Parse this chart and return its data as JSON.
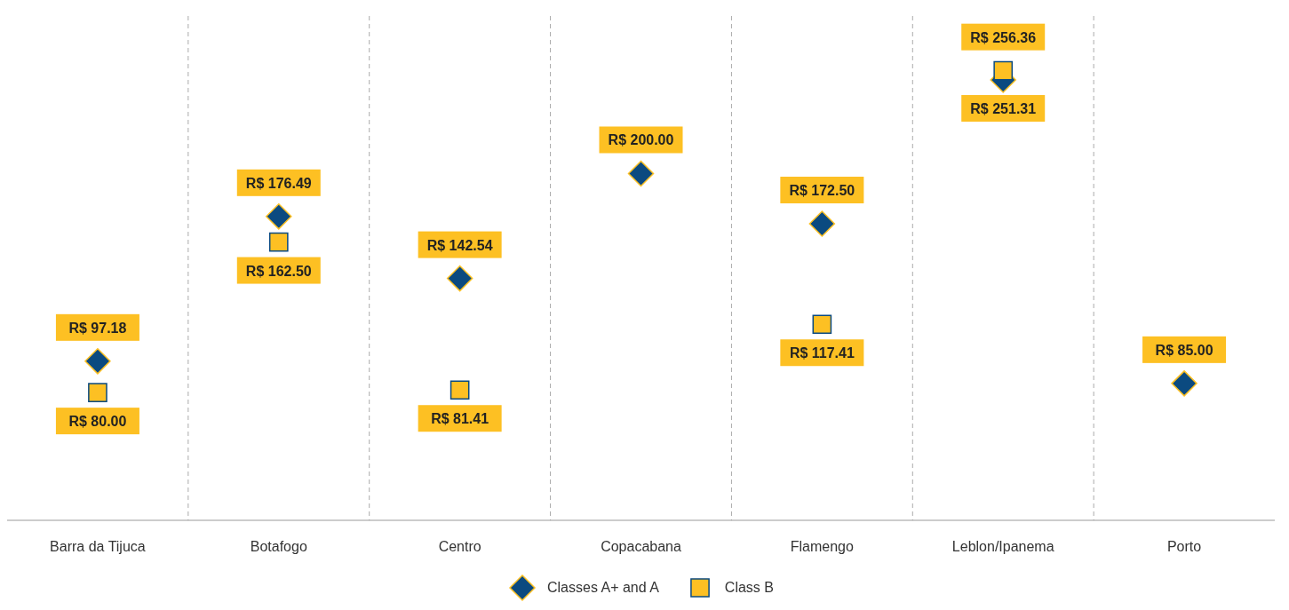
{
  "chart_data": {
    "type": "scatter",
    "categories": [
      "Barra da Tijuca",
      "Botafogo",
      "Centro",
      "Copacabana",
      "Flamengo",
      "Leblon/Ipanema",
      "Porto"
    ],
    "series": [
      {
        "name": "Classes A+ and A",
        "color": "#0b4a80",
        "marker": "diamond",
        "values": [
          97.18,
          176.49,
          142.54,
          200.0,
          172.5,
          251.31,
          85.0
        ],
        "value_labels": [
          "R$ 97.18",
          "R$ 176.49",
          "R$ 142.54",
          "R$ 200.00",
          "R$ 172.50",
          "R$ 251.31",
          "R$ 85.00"
        ]
      },
      {
        "name": "Class B",
        "color": "#fdc023",
        "marker": "square",
        "values": [
          80.0,
          162.5,
          81.41,
          null,
          117.41,
          256.36,
          null
        ],
        "value_labels": [
          "R$ 80.00",
          "R$ 162.50",
          "R$ 81.41",
          null,
          "R$ 117.41",
          "R$ 256.36",
          null
        ]
      }
    ],
    "grid": "x",
    "legend": "bottom"
  }
}
